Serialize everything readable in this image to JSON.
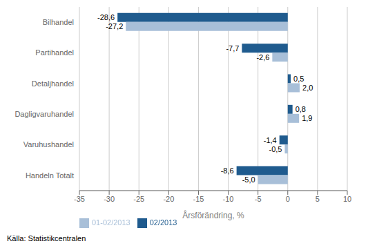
{
  "chart_data": {
    "type": "bar",
    "orientation": "horizontal",
    "categories": [
      "Bilhandel",
      "Partihandel",
      "Detaljhandel",
      "Dagligvaruhandel",
      "Varuhushandel",
      "Handeln Totalt"
    ],
    "series": [
      {
        "name": "02/2013",
        "color": "#1f5b8e",
        "values": [
          -28.6,
          -7.7,
          0.5,
          0.8,
          -1.4,
          -8.6
        ],
        "value_labels": [
          "-28,6",
          "-7,7",
          "0,5",
          "0,8",
          "-1,4",
          "-8,6"
        ]
      },
      {
        "name": "01-02/2013",
        "color": "#a8bfd8",
        "values": [
          -27.2,
          -2.6,
          2.0,
          1.9,
          -0.5,
          -5.0
        ],
        "value_labels": [
          "-27,2",
          "-2,6",
          "2,0",
          "1,9",
          "-0,5",
          "-5,0"
        ]
      }
    ],
    "xlabel": "Årsförändring, %",
    "xlim": [
      -35,
      10
    ],
    "xticks": [
      -35,
      -30,
      -25,
      -20,
      -15,
      -10,
      -5,
      0,
      5,
      10
    ],
    "grid": true,
    "legend": "lower left",
    "data_labels": true,
    "source": "Källa: Statistikcentralen"
  }
}
